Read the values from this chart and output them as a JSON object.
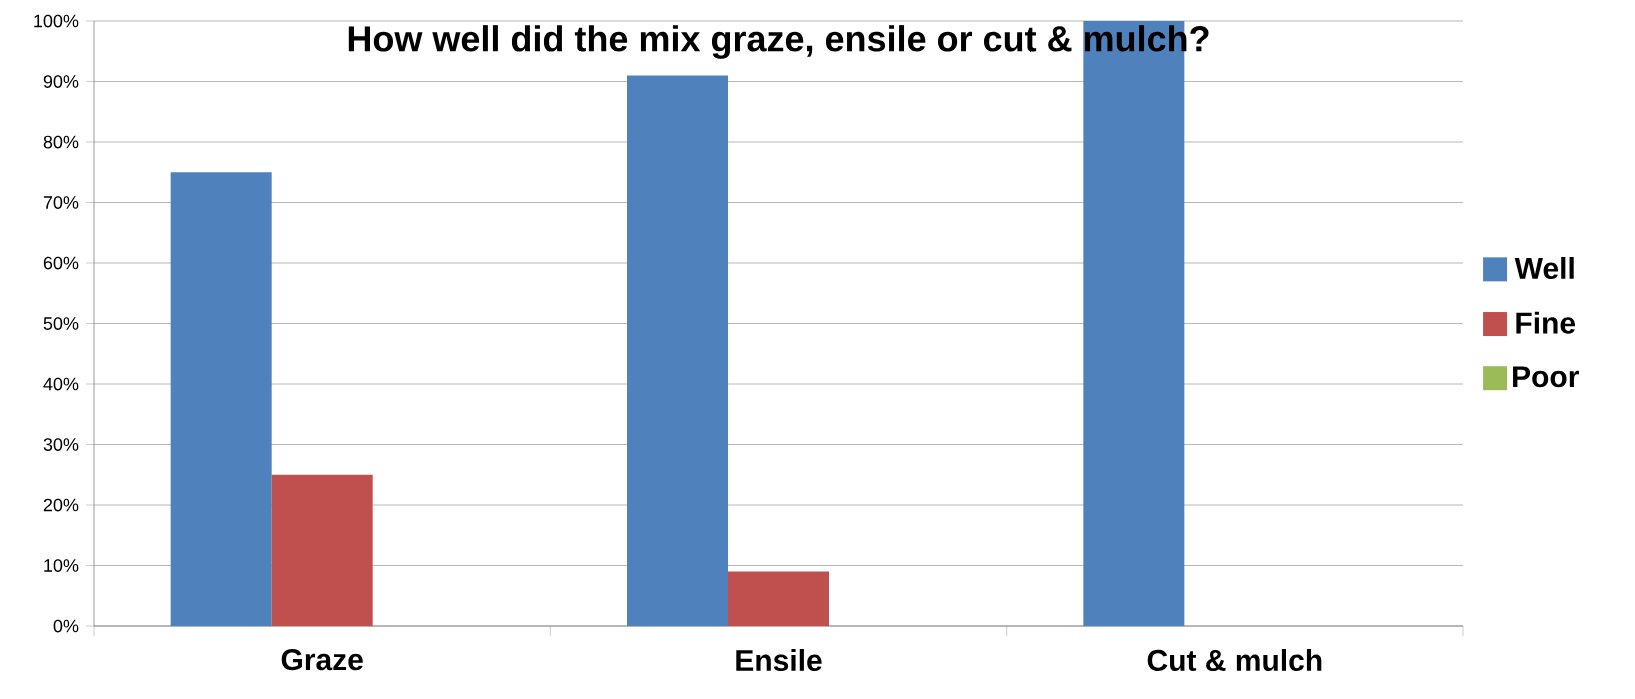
{
  "chart_data": {
    "type": "bar",
    "title": "How well did the mix graze, ensile or cut & mulch?",
    "categories": [
      "Graze",
      "Ensile",
      "Cut & mulch"
    ],
    "series": [
      {
        "name": "Well",
        "color": "#4f81bd",
        "values": [
          75,
          91,
          100
        ]
      },
      {
        "name": "Fine",
        "color": "#c0504d",
        "values": [
          25,
          9,
          0
        ]
      },
      {
        "name": "Poor",
        "color": "#9bbb59",
        "values": [
          0,
          0,
          0
        ]
      }
    ],
    "ylim": [
      0,
      100
    ],
    "yticks": [
      {
        "value": 0,
        "label": "0%"
      },
      {
        "value": 10,
        "label": "10%"
      },
      {
        "value": 20,
        "label": "20%"
      },
      {
        "value": 30,
        "label": "30%"
      },
      {
        "value": 40,
        "label": "40%"
      },
      {
        "value": 50,
        "label": "50%"
      },
      {
        "value": 60,
        "label": "60%"
      },
      {
        "value": 70,
        "label": "70%"
      },
      {
        "value": 80,
        "label": "80%"
      },
      {
        "value": 90,
        "label": "90%"
      },
      {
        "value": 100,
        "label": "100%"
      }
    ],
    "grid": "y",
    "legend": "right"
  }
}
